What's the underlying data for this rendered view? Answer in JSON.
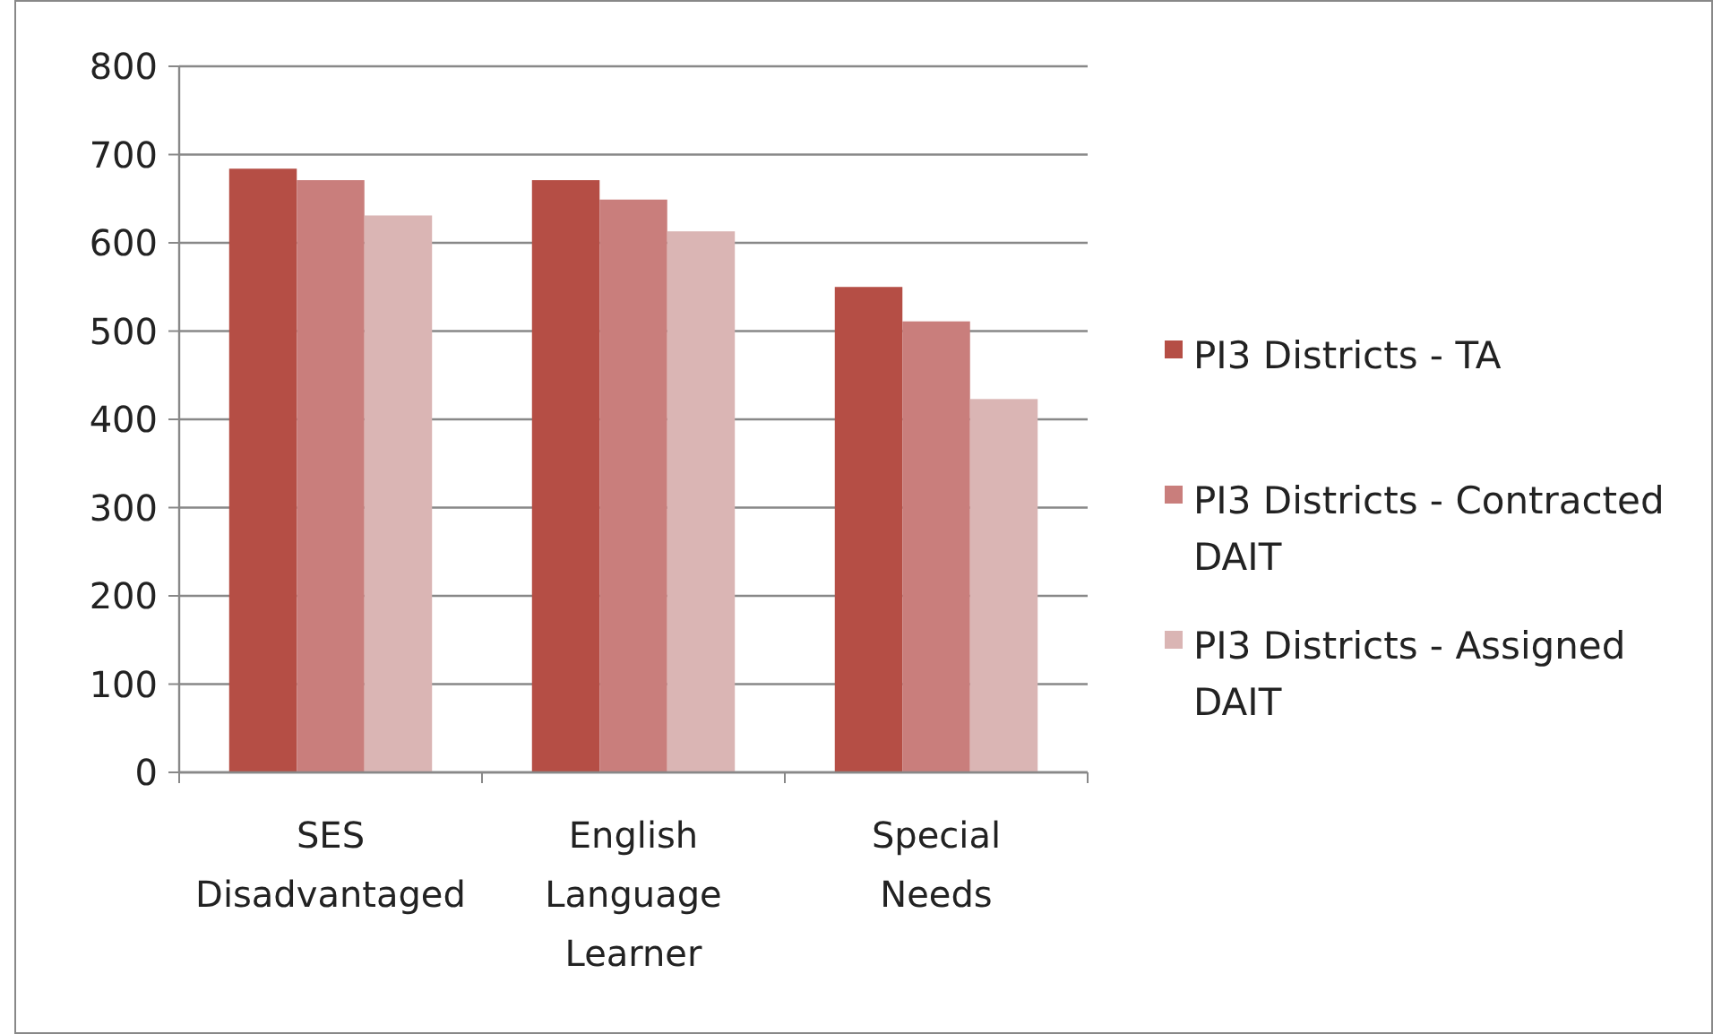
{
  "chart_data": {
    "type": "bar",
    "categories": [
      "SES Disadvantaged",
      "English Language Learner",
      "Special Needs"
    ],
    "series": [
      {
        "name": "PI3 Districts - TA",
        "color": "#b54e45",
        "values": [
          684,
          671,
          550
        ]
      },
      {
        "name": "PI3 Districts - Contracted DAIT",
        "color": "#c97e7c",
        "values": [
          671,
          649,
          511
        ]
      },
      {
        "name": "PI3 Districts - Assigned DAIT",
        "color": "#dab5b4",
        "values": [
          631,
          613,
          423
        ]
      }
    ],
    "ylim": [
      0,
      800
    ],
    "yticks": [
      0,
      100,
      200,
      300,
      400,
      500,
      600,
      700,
      800
    ],
    "grid": "y",
    "legend": "right"
  }
}
